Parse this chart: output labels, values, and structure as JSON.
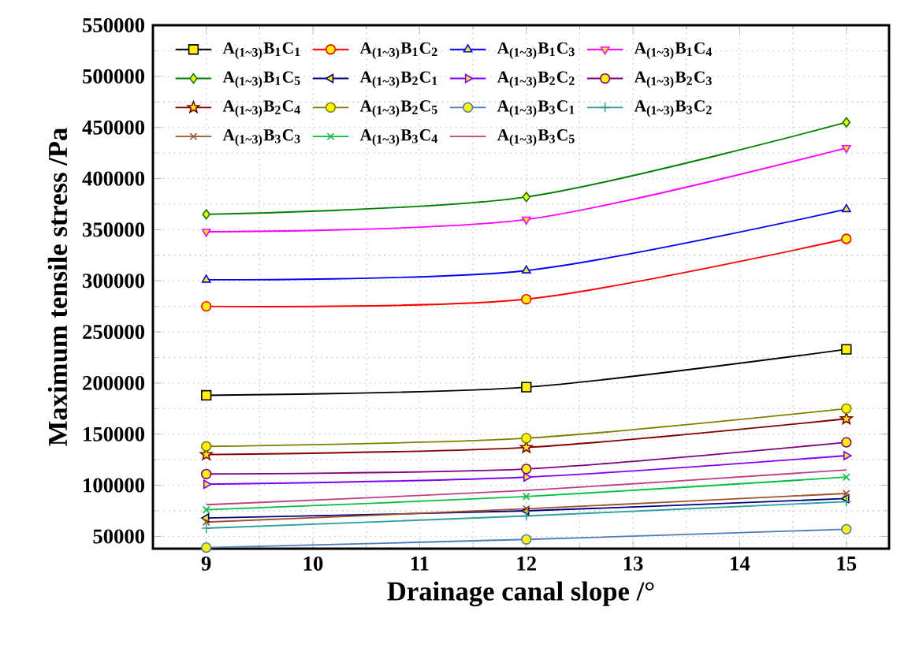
{
  "chart_data": {
    "type": "line",
    "xlabel": "Drainage canal slope /°",
    "ylabel": "Maximum tensile stress /Pa",
    "x": [
      9,
      12,
      15
    ],
    "xlim": [
      8.5,
      15.4
    ],
    "xticks": [
      9,
      10,
      11,
      12,
      13,
      14,
      15
    ],
    "ylim": [
      38000,
      550000
    ],
    "yticks": [
      50000,
      100000,
      150000,
      200000,
      250000,
      300000,
      350000,
      400000,
      450000,
      500000,
      550000
    ],
    "grid": true,
    "legend": "top left",
    "series": [
      {
        "name": "A$_{(1~3)}$B$_{1}$C$_{1}$",
        "color": "#000000",
        "marker": "square",
        "values": [
          188000,
          196000,
          233000
        ]
      },
      {
        "name": "A$_{(1~3)}$B$_{1}$C$_{2}$",
        "color": "#ff0000",
        "marker": "circle",
        "values": [
          275000,
          282000,
          341000
        ]
      },
      {
        "name": "A$_{(1~3)}$B$_{1}$C$_{3}$",
        "color": "#0000ff",
        "marker": "triangle",
        "values": [
          301000,
          310000,
          370000
        ]
      },
      {
        "name": "A$_{(1~3)}$B$_{1}$C$_{4}$",
        "color": "#ff00ff",
        "marker": "triangle_down",
        "values": [
          348000,
          360000,
          430000
        ]
      },
      {
        "name": "A$_{(1~3)}$B$_{1}$C$_{5}$",
        "color": "#008000",
        "marker": "diamond",
        "values": [
          365000,
          382000,
          455000
        ]
      },
      {
        "name": "A$_{(1~3)}$B$_{2}$C$_{1}$",
        "color": "#000080",
        "marker": "triangle_left",
        "values": [
          68000,
          75000,
          87000
        ]
      },
      {
        "name": "A$_{(1~3)}$B$_{2}$C$_{2}$",
        "color": "#8000ff",
        "marker": "triangle_right",
        "values": [
          101000,
          108000,
          129000
        ]
      },
      {
        "name": "A$_{(1~3)}$B$_{2}$C$_{3}$",
        "color": "#800080",
        "marker": "circle",
        "values": [
          111000,
          116000,
          142000
        ]
      },
      {
        "name": "A$_{(1~3)}$B$_{2}$C$_{4}$",
        "color": "#800000",
        "marker": "star",
        "values": [
          130000,
          137000,
          165000
        ]
      },
      {
        "name": "A$_{(1~3)}$B$_{2}$C$_{5}$",
        "color": "#808000",
        "marker": "circle",
        "values": [
          138000,
          146000,
          175000
        ]
      },
      {
        "name": "A$_{(1~3)}$B$_{3}$C$_{1}$",
        "color": "#4a7ebb",
        "marker": "circle",
        "values": [
          39000,
          47000,
          57000
        ]
      },
      {
        "name": "A$_{(1~3)}$B$_{3}$C$_{2}$",
        "color": "#2aa0a0",
        "marker": "plus",
        "values": [
          58000,
          70000,
          84000
        ]
      },
      {
        "name": "A$_{(1~3)}$B$_{3}$C$_{3}$",
        "color": "#a0522d",
        "marker": "cross",
        "values": [
          64000,
          77000,
          92000
        ]
      },
      {
        "name": "A$_{(1~3)}$B$_{3}$C$_{4}$",
        "color": "#00c040",
        "marker": "cross",
        "values": [
          76000,
          89000,
          108000
        ]
      },
      {
        "name": "A$_{(1~3)}$B$_{3}$C$_{5}$",
        "color": "#c0407f",
        "marker": "none",
        "values": [
          81000,
          95000,
          115000
        ]
      }
    ]
  }
}
